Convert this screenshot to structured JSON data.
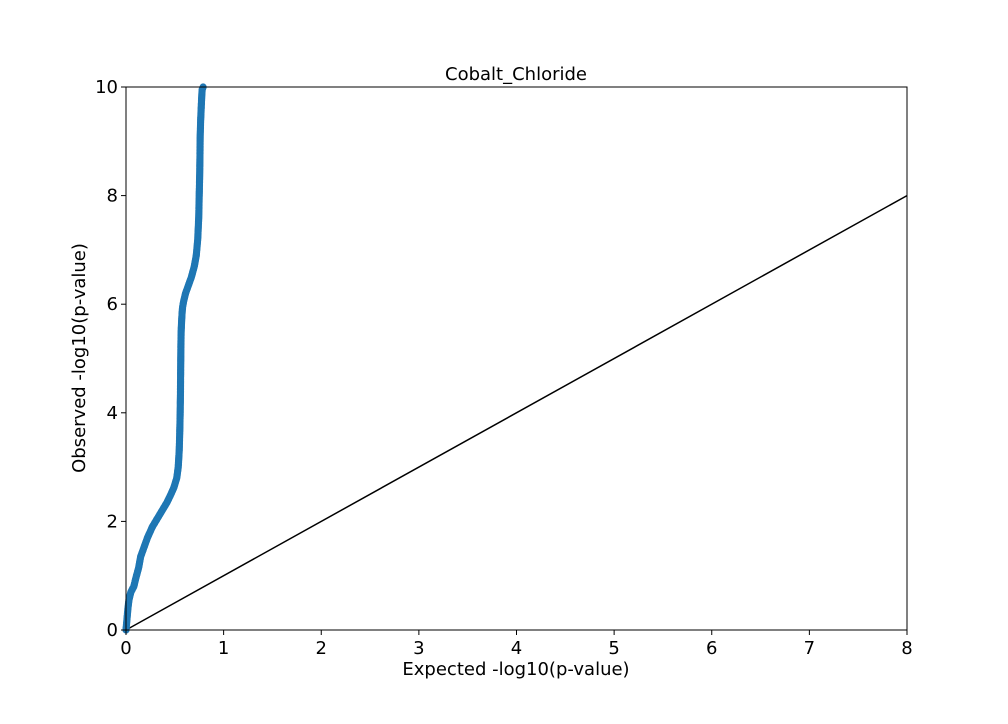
{
  "chart_data": {
    "type": "scatter",
    "title": "Cobalt_Chloride",
    "xlabel": "Expected -log10(p-value)",
    "ylabel": "Observed -log10(p-value)",
    "xlim": [
      0,
      8
    ],
    "ylim": [
      0,
      10
    ],
    "x_ticks": [
      "0",
      "1",
      "2",
      "3",
      "4",
      "5",
      "6",
      "7",
      "8"
    ],
    "y_ticks": [
      "0",
      "2",
      "4",
      "6",
      "8",
      "10"
    ],
    "grid": false,
    "legend": "none",
    "reference_line": {
      "x": [
        0,
        8
      ],
      "y": [
        0,
        8
      ],
      "color": "#000000"
    },
    "series": [
      {
        "color": "#1f77b4",
        "x": [
          0.0,
          0.01,
          0.02,
          0.03,
          0.05,
          0.08,
          0.1,
          0.13,
          0.15,
          0.18,
          0.22,
          0.27,
          0.32,
          0.37,
          0.42,
          0.46,
          0.49,
          0.52,
          0.535,
          0.545,
          0.55,
          0.555,
          0.558,
          0.56,
          0.562,
          0.565,
          0.57,
          0.575,
          0.58,
          0.59,
          0.61,
          0.64,
          0.67,
          0.7,
          0.72,
          0.735,
          0.745,
          0.75,
          0.755,
          0.758,
          0.76,
          0.765,
          0.77,
          0.775,
          0.78,
          0.79
        ],
        "y": [
          0.0,
          0.2,
          0.4,
          0.55,
          0.7,
          0.8,
          0.95,
          1.15,
          1.35,
          1.5,
          1.7,
          1.9,
          2.05,
          2.2,
          2.35,
          2.5,
          2.62,
          2.8,
          3.0,
          3.3,
          3.6,
          4.0,
          4.4,
          4.8,
          5.2,
          5.5,
          5.7,
          5.85,
          5.95,
          6.05,
          6.2,
          6.35,
          6.5,
          6.7,
          6.9,
          7.2,
          7.6,
          8.0,
          8.4,
          8.8,
          9.1,
          9.4,
          9.6,
          9.8,
          9.95,
          10.0
        ]
      }
    ]
  }
}
